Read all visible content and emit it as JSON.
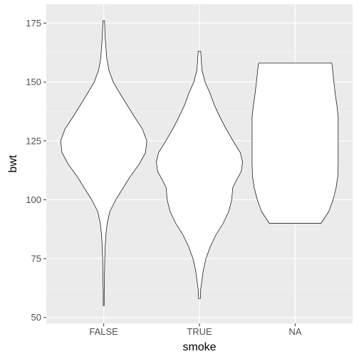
{
  "chart_data": {
    "type": "violin",
    "title": "",
    "xlabel": "smoke",
    "ylabel": "bwt",
    "categories": [
      "FALSE",
      "TRUE",
      "NA"
    ],
    "ylim": [
      47.5,
      183
    ],
    "yticks": [
      50,
      75,
      100,
      125,
      150,
      175
    ],
    "grid": true,
    "legend": "none",
    "colors": {
      "panel_background": "#EBEBEB",
      "grid_major": "#FFFFFF",
      "grid_minor": "#F5F5F5",
      "violin_fill": "#FFFFFF",
      "violin_outline": "#000000",
      "tick_label": "#4D4D4D",
      "tick_mark": "#333333"
    },
    "series": [
      {
        "category": "FALSE",
        "min": 55,
        "max": 176,
        "density_profile": [
          [
            55,
            0.01
          ],
          [
            60,
            0.01
          ],
          [
            65,
            0.015
          ],
          [
            70,
            0.02
          ],
          [
            75,
            0.025
          ],
          [
            80,
            0.035
          ],
          [
            85,
            0.05
          ],
          [
            90,
            0.08
          ],
          [
            95,
            0.14
          ],
          [
            100,
            0.28
          ],
          [
            105,
            0.45
          ],
          [
            110,
            0.62
          ],
          [
            115,
            0.82
          ],
          [
            120,
            0.97
          ],
          [
            125,
            1.0
          ],
          [
            130,
            0.9
          ],
          [
            135,
            0.72
          ],
          [
            140,
            0.55
          ],
          [
            145,
            0.38
          ],
          [
            150,
            0.22
          ],
          [
            155,
            0.12
          ],
          [
            160,
            0.07
          ],
          [
            165,
            0.05
          ],
          [
            170,
            0.03
          ],
          [
            176,
            0.02
          ]
        ]
      },
      {
        "category": "TRUE",
        "min": 58,
        "max": 163,
        "density_profile": [
          [
            58,
            0.02
          ],
          [
            62,
            0.03
          ],
          [
            66,
            0.06
          ],
          [
            70,
            0.09
          ],
          [
            75,
            0.15
          ],
          [
            80,
            0.25
          ],
          [
            85,
            0.38
          ],
          [
            90,
            0.55
          ],
          [
            95,
            0.68
          ],
          [
            100,
            0.75
          ],
          [
            105,
            0.77
          ],
          [
            108,
            0.85
          ],
          [
            112,
            0.97
          ],
          [
            116,
            1.0
          ],
          [
            120,
            0.95
          ],
          [
            125,
            0.78
          ],
          [
            130,
            0.62
          ],
          [
            135,
            0.48
          ],
          [
            140,
            0.35
          ],
          [
            145,
            0.25
          ],
          [
            150,
            0.13
          ],
          [
            155,
            0.06
          ],
          [
            160,
            0.04
          ],
          [
            163,
            0.03
          ]
        ]
      },
      {
        "category": "NA",
        "min": 90,
        "max": 158,
        "density_profile": [
          [
            90,
            0.6
          ],
          [
            95,
            0.78
          ],
          [
            100,
            0.88
          ],
          [
            105,
            0.95
          ],
          [
            110,
            0.99
          ],
          [
            115,
            1.0
          ],
          [
            120,
            1.0
          ],
          [
            125,
            1.0
          ],
          [
            130,
            1.0
          ],
          [
            135,
            1.0
          ],
          [
            140,
            0.97
          ],
          [
            145,
            0.93
          ],
          [
            150,
            0.9
          ],
          [
            155,
            0.87
          ],
          [
            158,
            0.85
          ]
        ]
      }
    ]
  }
}
